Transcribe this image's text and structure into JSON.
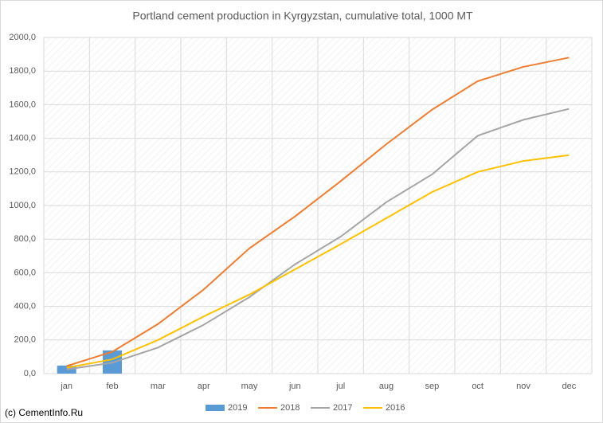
{
  "chart_data": {
    "type": "line",
    "title": "Portland cement production in Kyrgyzstan, cumulative total, 1000 MT",
    "watermark": "(c) CementInfo.Ru",
    "categories": [
      "jan",
      "feb",
      "mar",
      "apr",
      "may",
      "jun",
      "jul",
      "aug",
      "sep",
      "oct",
      "nov",
      "dec"
    ],
    "series": [
      {
        "name": "2019",
        "type": "bar",
        "color": "#5b9bd5",
        "values": [
          48,
          138,
          null,
          null,
          null,
          null,
          null,
          null,
          null,
          null,
          null,
          null
        ]
      },
      {
        "name": "2018",
        "color": "#ed7d31",
        "values": [
          45,
          130,
          295,
          500,
          745,
          935,
          1145,
          1365,
          1570,
          1740,
          1825,
          1880
        ]
      },
      {
        "name": "2017",
        "color": "#a5a5a5",
        "values": [
          25,
          65,
          155,
          290,
          455,
          650,
          815,
          1020,
          1185,
          1415,
          1510,
          1575
        ]
      },
      {
        "name": "2016",
        "color": "#ffc000",
        "values": [
          35,
          85,
          200,
          340,
          470,
          620,
          770,
          925,
          1080,
          1200,
          1265,
          1300
        ]
      }
    ],
    "ylim": [
      0,
      2000
    ],
    "yticks": [
      {
        "value": 0,
        "label": "0,0"
      },
      {
        "value": 200,
        "label": "200,0"
      },
      {
        "value": 400,
        "label": "400,0"
      },
      {
        "value": 600,
        "label": "600,0"
      },
      {
        "value": 800,
        "label": "800,0"
      },
      {
        "value": 1000,
        "label": "1000,0"
      },
      {
        "value": 1200,
        "label": "1200,0"
      },
      {
        "value": 1400,
        "label": "1400,0"
      },
      {
        "value": 1600,
        "label": "1600,0"
      },
      {
        "value": 1800,
        "label": "1800,0"
      },
      {
        "value": 2000,
        "label": "2000,0"
      }
    ],
    "grid": true,
    "legend": "bottom"
  }
}
